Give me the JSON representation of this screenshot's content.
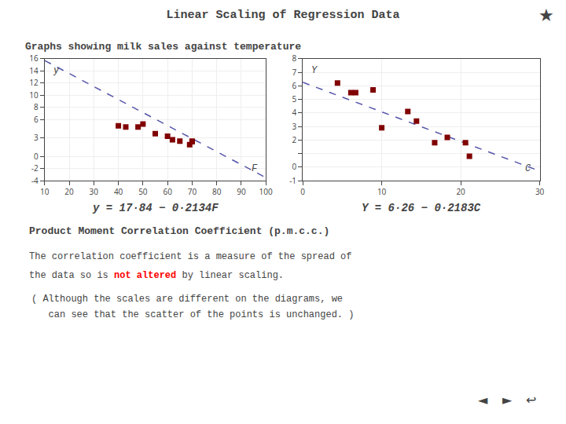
{
  "chart_data": [
    {
      "type": "scatter",
      "title": "Linear Scaling of Regression Data",
      "subtitle": "Graphs showing milk sales against temperature",
      "xlabel": "F",
      "ylabel": "y",
      "xlim": [
        10,
        100
      ],
      "xticks": [
        10,
        20,
        30,
        40,
        50,
        60,
        70,
        80,
        90,
        100
      ],
      "ylim": [
        -4,
        16
      ],
      "yticks": [
        -4,
        -2,
        0,
        3,
        6,
        8,
        10,
        12,
        14,
        16
      ],
      "grid": true,
      "series": [
        {
          "type": "line",
          "x": [
            10,
            100
          ],
          "values": [
            15.706,
            -3.5
          ],
          "color": "#5555AA",
          "line_style": "dashed"
        },
        {
          "type": "scatter",
          "x": [
            40,
            43,
            48,
            50,
            55,
            60,
            62,
            65,
            69,
            70,
            70
          ],
          "values": [
            5.0,
            4.8,
            4.8,
            5.3,
            3.7,
            3.3,
            2.7,
            2.5,
            1.9,
            2.5,
            2.4
          ],
          "color": "#800000",
          "marker": "square"
        }
      ],
      "annotations": [
        {
          "text": "y = 17·84 − 0·2134F"
        },
        {
          "text": "Product Moment Correlation Coefficient (p.m.c.c.)"
        },
        {
          "text": "The correlation coefficient is a measure of the spread of"
        },
        {
          "parts": [
            {
              "text": "the data so is "
            },
            {
              "text": "not altered",
              "color": "#FF0000"
            },
            {
              "text": " by linear scaling."
            }
          ]
        },
        {
          "text": "( Although the scales are different on the diagrams, we"
        },
        {
          "text": "   can see that the scatter of the points is unchanged. )"
        },
        {
          "text": "★"
        },
        {
          "text": "◄"
        },
        {
          "text": "►"
        },
        {
          "text": "↩"
        }
      ]
    },
    {
      "type": "scatter",
      "xlabel": "C",
      "ylabel": "Y",
      "xlim": [
        0,
        30
      ],
      "xticks": [
        0,
        10,
        20,
        30
      ],
      "ylim": [
        -1,
        8
      ],
      "yticks": [
        -1,
        0,
        {
          "value": 1,
          "label": ""
        },
        2,
        3,
        4,
        5,
        6,
        7,
        8
      ],
      "grid": true,
      "series": [
        {
          "type": "line",
          "x": [
            0,
            30
          ],
          "values": [
            6.26,
            -0.289
          ],
          "color": "#5555AA",
          "line_style": "dashed"
        },
        {
          "type": "scatter",
          "x": [
            4.4,
            6.1,
            6.7,
            8.9,
            10.0,
            13.3,
            14.4,
            16.7,
            18.3,
            20.6,
            21.1
          ],
          "values": [
            6.2,
            5.5,
            5.5,
            5.7,
            2.9,
            4.1,
            3.4,
            1.8,
            2.2,
            1.8,
            0.8
          ],
          "color": "#800000",
          "marker": "square"
        }
      ],
      "annotations": [
        {
          "text": "Y = 6·26 − 0·2183C"
        }
      ]
    }
  ]
}
